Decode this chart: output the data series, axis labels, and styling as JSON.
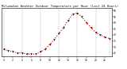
{
  "title": "Milwaukee Weather Outdoor Temperature per Hour (Last 24 Hours)",
  "hours": [
    0,
    1,
    2,
    3,
    4,
    5,
    6,
    7,
    8,
    9,
    10,
    11,
    12,
    13,
    14,
    15,
    16,
    17,
    18,
    19,
    20,
    21,
    22,
    23
  ],
  "temps": [
    28,
    27,
    26,
    25,
    25,
    24,
    24,
    24,
    26,
    28,
    32,
    36,
    41,
    46,
    52,
    57,
    58,
    55,
    50,
    46,
    42,
    40,
    38,
    37
  ],
  "line_color": "#cc0000",
  "marker_color": "#111111",
  "bg_color": "#ffffff",
  "vgrid_color": "#888888",
  "text_color": "#111111",
  "ylim_min": 22,
  "ylim_max": 62,
  "xlim_min": -0.5,
  "xlim_max": 23.5,
  "yticks": [
    25,
    30,
    35,
    40,
    45,
    50,
    55,
    60
  ],
  "xticks": [
    0,
    2,
    4,
    6,
    8,
    10,
    12,
    14,
    16,
    18,
    20,
    22
  ],
  "vgrid_positions": [
    0,
    4,
    8,
    12,
    16,
    20,
    23
  ],
  "title_fontsize": 2.8,
  "tick_fontsize": 2.2
}
